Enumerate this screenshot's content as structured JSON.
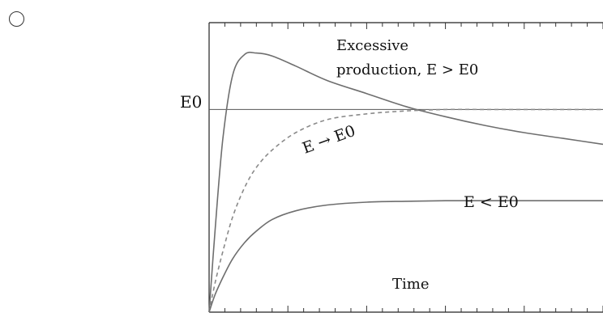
{
  "option": {
    "selected": false
  },
  "chart_data": {
    "type": "line",
    "title": "",
    "xlabel": "Time",
    "ylabel": "",
    "xlim": [
      0,
      10
    ],
    "ylim": [
      0,
      10
    ],
    "grid": false,
    "reference_line": {
      "label": "E0",
      "y": 7.0
    },
    "annotations": [
      {
        "text": "Excessive",
        "series": "excess"
      },
      {
        "text": "production, E > E0",
        "series": "excess"
      },
      {
        "text": "E → E0",
        "series": "approach"
      },
      {
        "text": "E < E0",
        "series": "below"
      }
    ],
    "series": [
      {
        "id": "excess",
        "style": "solid",
        "color": "#7a7a7a",
        "x": [
          0,
          0.15,
          0.35,
          0.6,
          0.9,
          1.2,
          1.6,
          2.2,
          3.0,
          4.0,
          5.0,
          6.0,
          7.0,
          8.0,
          9.0,
          10.0
        ],
        "y": [
          0,
          2.8,
          6.0,
          8.2,
          8.9,
          8.95,
          8.85,
          8.5,
          8.0,
          7.55,
          7.1,
          6.75,
          6.45,
          6.2,
          6.0,
          5.8
        ]
      },
      {
        "id": "approach",
        "style": "dashed",
        "color": "#7a7a7a",
        "x": [
          0,
          0.15,
          0.35,
          0.6,
          0.9,
          1.2,
          1.6,
          2.2,
          3.0,
          4.0,
          5.0,
          6.0,
          7.0,
          8.0,
          9.0,
          10.0
        ],
        "y": [
          0,
          1.0,
          2.1,
          3.3,
          4.3,
          5.0,
          5.6,
          6.2,
          6.65,
          6.85,
          6.95,
          7.0,
          7.0,
          7.0,
          7.0,
          7.0
        ]
      },
      {
        "id": "below",
        "style": "solid",
        "color": "#7a7a7a",
        "x": [
          0,
          0.15,
          0.35,
          0.6,
          0.9,
          1.2,
          1.6,
          2.2,
          3.0,
          4.0,
          5.0,
          6.0,
          7.0,
          8.0,
          9.0,
          10.0
        ],
        "y": [
          0,
          0.6,
          1.2,
          1.85,
          2.4,
          2.8,
          3.2,
          3.5,
          3.7,
          3.8,
          3.83,
          3.85,
          3.85,
          3.85,
          3.85,
          3.85
        ]
      }
    ]
  }
}
